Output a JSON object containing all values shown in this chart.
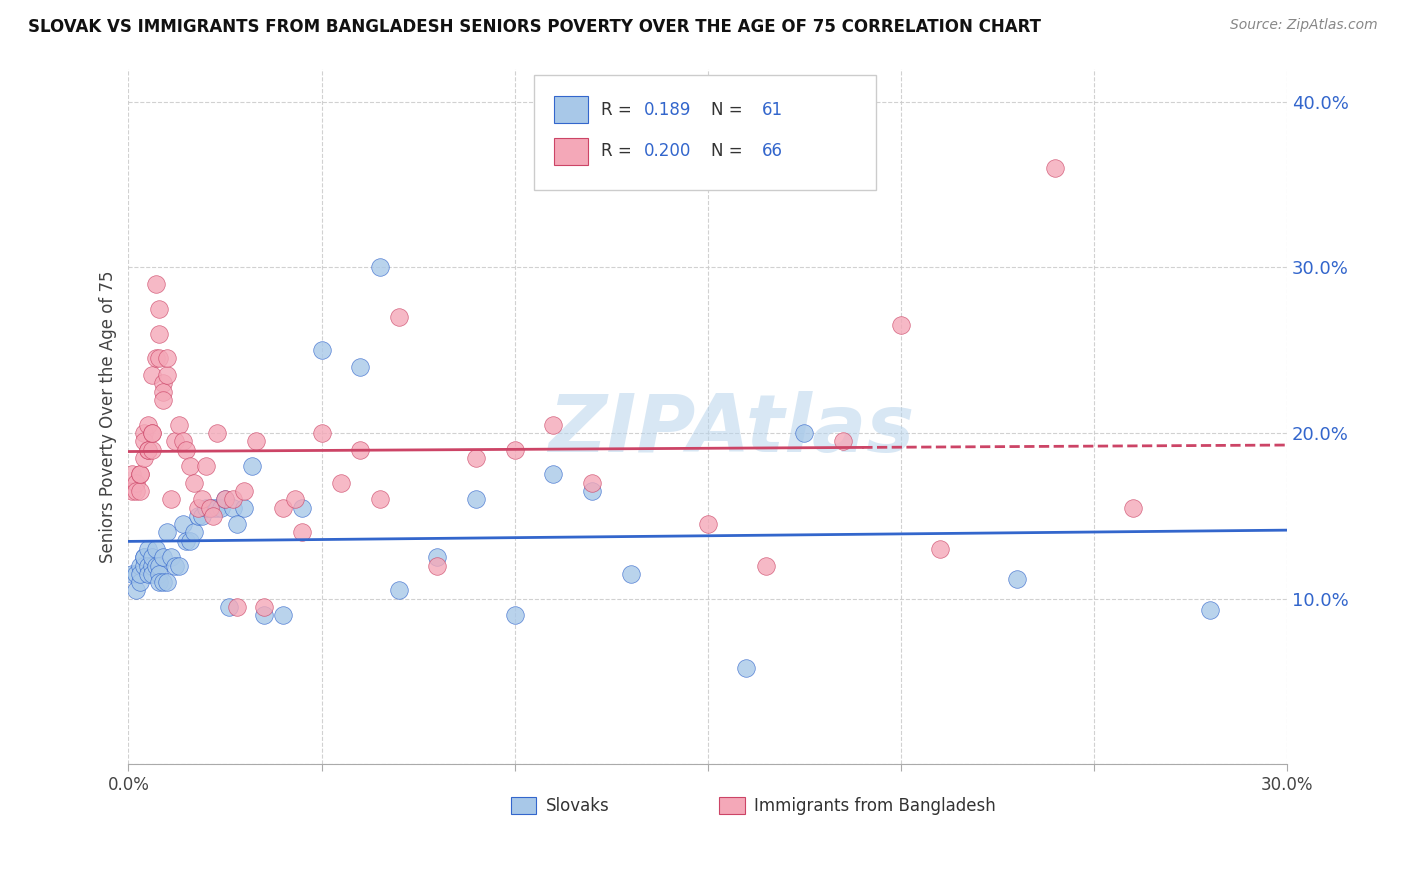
{
  "title": "SLOVAK VS IMMIGRANTS FROM BANGLADESH SENIORS POVERTY OVER THE AGE OF 75 CORRELATION CHART",
  "source": "Source: ZipAtlas.com",
  "ylabel": "Seniors Poverty Over the Age of 75",
  "watermark": "ZIPAtlas",
  "xlim": [
    0.0,
    0.3
  ],
  "ylim": [
    0.0,
    0.42
  ],
  "xticks": [
    0.0,
    0.05,
    0.1,
    0.15,
    0.2,
    0.25,
    0.3
  ],
  "yticks": [
    0.0,
    0.1,
    0.2,
    0.3,
    0.4
  ],
  "xticklabels": [
    "0.0%",
    "",
    "",
    "",
    "",
    "",
    "30.0%"
  ],
  "yticklabels_right": [
    "",
    "10.0%",
    "20.0%",
    "30.0%",
    "40.0%"
  ],
  "slovak_R": "0.189",
  "slovak_N": "61",
  "bangladesh_R": "0.200",
  "bangladesh_N": "66",
  "slovak_color": "#a8c8e8",
  "bangladesh_color": "#f4a8b8",
  "trendline_slovak_color": "#3366cc",
  "trendline_bangladesh_color": "#cc4466",
  "background_color": "#ffffff",
  "legend_label_slovak": "Slovaks",
  "legend_label_bangladesh": "Immigrants from Bangladesh",
  "slovak_x": [
    0.001,
    0.002,
    0.002,
    0.003,
    0.003,
    0.003,
    0.004,
    0.004,
    0.004,
    0.005,
    0.005,
    0.005,
    0.006,
    0.006,
    0.006,
    0.007,
    0.007,
    0.008,
    0.008,
    0.008,
    0.009,
    0.009,
    0.01,
    0.01,
    0.011,
    0.012,
    0.013,
    0.014,
    0.015,
    0.016,
    0.017,
    0.018,
    0.019,
    0.02,
    0.021,
    0.022,
    0.023,
    0.024,
    0.025,
    0.026,
    0.027,
    0.028,
    0.03,
    0.032,
    0.035,
    0.04,
    0.045,
    0.05,
    0.06,
    0.065,
    0.07,
    0.08,
    0.09,
    0.1,
    0.11,
    0.12,
    0.13,
    0.16,
    0.175,
    0.23,
    0.28
  ],
  "slovak_y": [
    0.115,
    0.115,
    0.105,
    0.12,
    0.11,
    0.115,
    0.125,
    0.12,
    0.125,
    0.13,
    0.12,
    0.115,
    0.12,
    0.125,
    0.115,
    0.13,
    0.12,
    0.12,
    0.115,
    0.11,
    0.125,
    0.11,
    0.11,
    0.14,
    0.125,
    0.12,
    0.12,
    0.145,
    0.135,
    0.135,
    0.14,
    0.15,
    0.15,
    0.155,
    0.155,
    0.155,
    0.155,
    0.155,
    0.16,
    0.095,
    0.155,
    0.145,
    0.155,
    0.18,
    0.09,
    0.09,
    0.155,
    0.25,
    0.24,
    0.3,
    0.105,
    0.125,
    0.16,
    0.09,
    0.175,
    0.165,
    0.115,
    0.058,
    0.2,
    0.112,
    0.093
  ],
  "bangladesh_x": [
    0.001,
    0.001,
    0.002,
    0.002,
    0.003,
    0.003,
    0.003,
    0.004,
    0.004,
    0.004,
    0.005,
    0.005,
    0.005,
    0.006,
    0.006,
    0.006,
    0.006,
    0.007,
    0.007,
    0.008,
    0.008,
    0.008,
    0.009,
    0.009,
    0.009,
    0.01,
    0.01,
    0.011,
    0.012,
    0.013,
    0.014,
    0.015,
    0.016,
    0.017,
    0.018,
    0.019,
    0.02,
    0.021,
    0.022,
    0.023,
    0.025,
    0.027,
    0.028,
    0.03,
    0.033,
    0.035,
    0.04,
    0.043,
    0.045,
    0.05,
    0.055,
    0.06,
    0.065,
    0.07,
    0.08,
    0.09,
    0.1,
    0.11,
    0.12,
    0.15,
    0.165,
    0.185,
    0.2,
    0.21,
    0.24,
    0.26
  ],
  "bangladesh_y": [
    0.165,
    0.175,
    0.17,
    0.165,
    0.165,
    0.175,
    0.175,
    0.2,
    0.185,
    0.195,
    0.19,
    0.205,
    0.19,
    0.19,
    0.2,
    0.2,
    0.235,
    0.245,
    0.29,
    0.275,
    0.26,
    0.245,
    0.23,
    0.225,
    0.22,
    0.235,
    0.245,
    0.16,
    0.195,
    0.205,
    0.195,
    0.19,
    0.18,
    0.17,
    0.155,
    0.16,
    0.18,
    0.155,
    0.15,
    0.2,
    0.16,
    0.16,
    0.095,
    0.165,
    0.195,
    0.095,
    0.155,
    0.16,
    0.14,
    0.2,
    0.17,
    0.19,
    0.16,
    0.27,
    0.12,
    0.185,
    0.19,
    0.205,
    0.17,
    0.145,
    0.12,
    0.195,
    0.265,
    0.13,
    0.36,
    0.155
  ]
}
